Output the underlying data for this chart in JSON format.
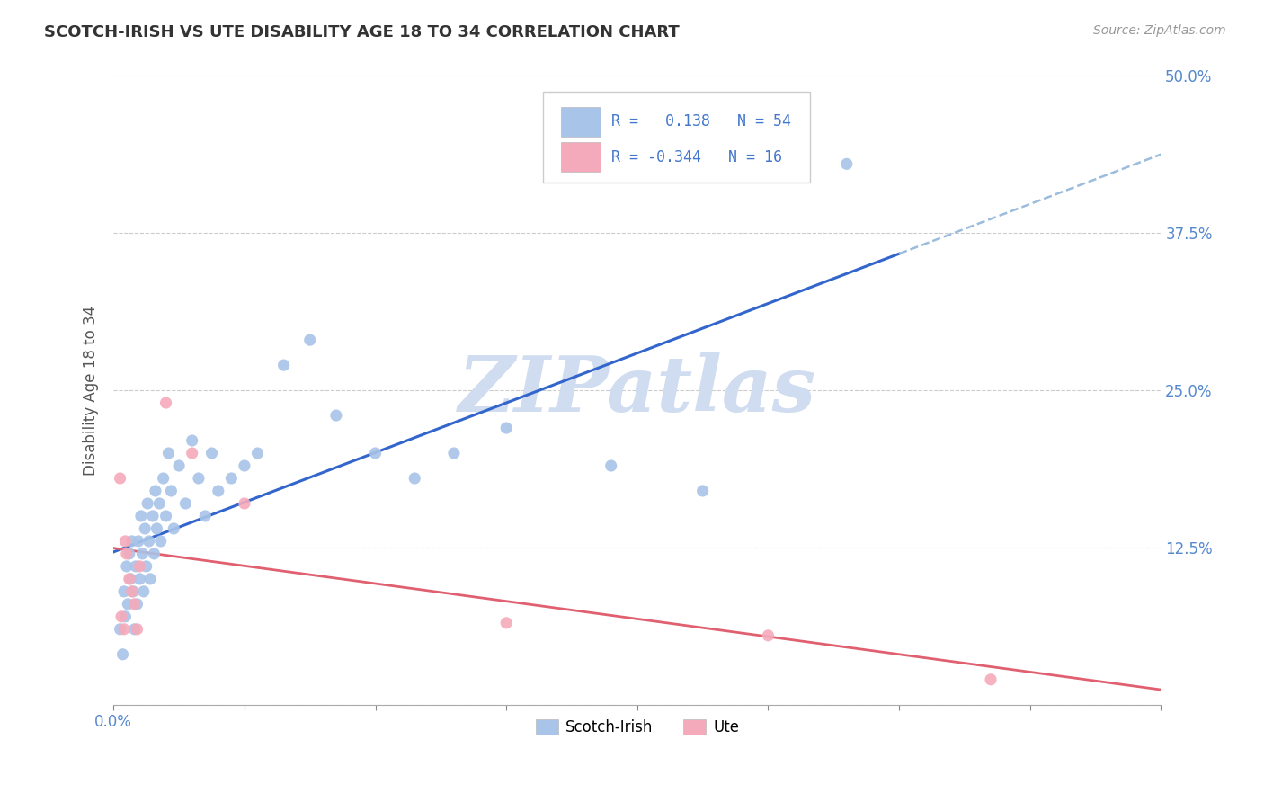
{
  "title": "SCOTCH-IRISH VS UTE DISABILITY AGE 18 TO 34 CORRELATION CHART",
  "source_text": "Source: ZipAtlas.com",
  "ylabel": "Disability Age 18 to 34",
  "xlim": [
    0.0,
    0.8
  ],
  "ylim": [
    0.0,
    0.5
  ],
  "xtick_vals": [
    0.0,
    0.1,
    0.2,
    0.3,
    0.4,
    0.5,
    0.6,
    0.7,
    0.8
  ],
  "xtick_labels_show": {
    "0.0": "0.0%"
  },
  "ytick_vals": [
    0.0,
    0.125,
    0.25,
    0.375,
    0.5
  ],
  "ytick_labels": [
    "",
    "12.5%",
    "25.0%",
    "37.5%",
    "50.0%"
  ],
  "blue_R": 0.138,
  "blue_N": 54,
  "pink_R": -0.344,
  "pink_N": 16,
  "blue_dot_color": "#A8C4E8",
  "pink_dot_color": "#F5AABB",
  "blue_line_color": "#3366CC",
  "pink_line_color": "#E06070",
  "blue_dash_color": "#9BBCDC",
  "watermark_color": "#D0DCF0",
  "background_color": "#FFFFFF",
  "grid_color": "#CCCCCC",
  "legend_label_blue": "Scotch-Irish",
  "legend_label_pink": "Ute",
  "blue_scatter_x": [
    0.005,
    0.007,
    0.008,
    0.009,
    0.01,
    0.011,
    0.012,
    0.013,
    0.014,
    0.015,
    0.016,
    0.017,
    0.018,
    0.019,
    0.02,
    0.021,
    0.022,
    0.023,
    0.024,
    0.025,
    0.026,
    0.027,
    0.028,
    0.03,
    0.031,
    0.032,
    0.033,
    0.035,
    0.036,
    0.038,
    0.04,
    0.042,
    0.044,
    0.046,
    0.05,
    0.055,
    0.06,
    0.065,
    0.07,
    0.075,
    0.08,
    0.09,
    0.1,
    0.11,
    0.13,
    0.15,
    0.17,
    0.2,
    0.23,
    0.26,
    0.3,
    0.38,
    0.45,
    0.56
  ],
  "blue_scatter_y": [
    0.06,
    0.04,
    0.09,
    0.07,
    0.11,
    0.08,
    0.12,
    0.1,
    0.13,
    0.09,
    0.06,
    0.11,
    0.08,
    0.13,
    0.1,
    0.15,
    0.12,
    0.09,
    0.14,
    0.11,
    0.16,
    0.13,
    0.1,
    0.15,
    0.12,
    0.17,
    0.14,
    0.16,
    0.13,
    0.18,
    0.15,
    0.2,
    0.17,
    0.14,
    0.19,
    0.16,
    0.21,
    0.18,
    0.15,
    0.2,
    0.17,
    0.18,
    0.19,
    0.2,
    0.27,
    0.29,
    0.23,
    0.2,
    0.18,
    0.2,
    0.22,
    0.19,
    0.17,
    0.43
  ],
  "pink_scatter_x": [
    0.005,
    0.006,
    0.008,
    0.009,
    0.01,
    0.012,
    0.014,
    0.016,
    0.018,
    0.02,
    0.04,
    0.06,
    0.1,
    0.3,
    0.5,
    0.67
  ],
  "pink_scatter_y": [
    0.18,
    0.07,
    0.06,
    0.13,
    0.12,
    0.1,
    0.09,
    0.08,
    0.06,
    0.11,
    0.24,
    0.2,
    0.16,
    0.065,
    0.055,
    0.02
  ],
  "blue_line_x_solid_end": 0.6,
  "pink_intercept": 0.13,
  "pink_slope": -0.165
}
